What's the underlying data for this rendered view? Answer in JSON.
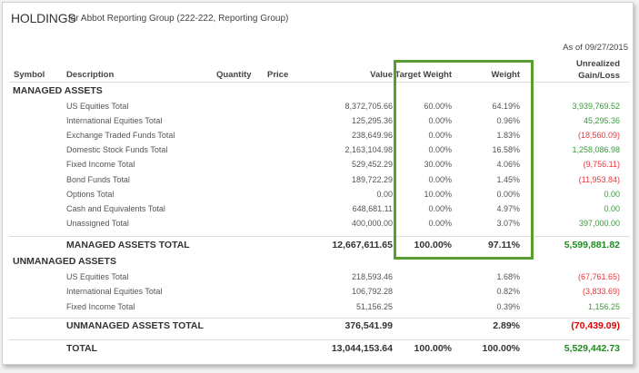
{
  "header": {
    "title": "HOLDINGS",
    "subtitle": "for Abbot Reporting Group (222-222, Reporting Group)",
    "as_of": "As of 09/27/2015"
  },
  "columns": {
    "symbol": "Symbol",
    "description": "Description",
    "quantity": "Quantity",
    "price": "Price",
    "value": "Value",
    "target_weight": "Target Weight",
    "weight": "Weight",
    "gain_line1": "Unrealized",
    "gain_line2": "Gain/Loss"
  },
  "highlight_color": "#5c9e2e",
  "managed": {
    "label": "MANAGED ASSETS",
    "rows": [
      {
        "description": "US Equities Total",
        "value": "8,372,705.66",
        "target": "60.00%",
        "weight": "64.19%",
        "gain": "3,939,769.52",
        "sign": "pos"
      },
      {
        "description": "International Equities Total",
        "value": "125,295.36",
        "target": "0.00%",
        "weight": "0.96%",
        "gain": "45,295.36",
        "sign": "pos"
      },
      {
        "description": "Exchange Traded Funds Total",
        "value": "238,649.96",
        "target": "0.00%",
        "weight": "1.83%",
        "gain": "(18,560.09)",
        "sign": "neg"
      },
      {
        "description": "Domestic Stock Funds Total",
        "value": "2,163,104.98",
        "target": "0.00%",
        "weight": "16.58%",
        "gain": "1,258,086.98",
        "sign": "pos"
      },
      {
        "description": "Fixed Income Total",
        "value": "529,452.29",
        "target": "30.00%",
        "weight": "4.06%",
        "gain": "(9,756.11)",
        "sign": "neg"
      },
      {
        "description": "Bond Funds Total",
        "value": "189,722.29",
        "target": "0.00%",
        "weight": "1.45%",
        "gain": "(11,953.84)",
        "sign": "neg"
      },
      {
        "description": "Options Total",
        "value": "0.00",
        "target": "10.00%",
        "weight": "0.00%",
        "gain": "0.00",
        "sign": "pos"
      },
      {
        "description": "Cash and Equivalents Total",
        "value": "648,681.11",
        "target": "0.00%",
        "weight": "4.97%",
        "gain": "0.00",
        "sign": "pos"
      },
      {
        "description": "Unassigned Total",
        "value": "400,000.00",
        "target": "0.00%",
        "weight": "3.07%",
        "gain": "397,000.00",
        "sign": "pos"
      }
    ],
    "total": {
      "description": "MANAGED ASSETS TOTAL",
      "value": "12,667,611.65",
      "target": "100.00%",
      "weight": "97.11%",
      "gain": "5,599,881.82",
      "sign": "pos"
    }
  },
  "unmanaged": {
    "label": "UNMANAGED ASSETS",
    "rows": [
      {
        "description": "US Equities Total",
        "value": "218,593.46",
        "target": "",
        "weight": "1.68%",
        "gain": "(67,761.65)",
        "sign": "neg"
      },
      {
        "description": "International Equities Total",
        "value": "106,792.28",
        "target": "",
        "weight": "0.82%",
        "gain": "(3,833.69)",
        "sign": "neg"
      },
      {
        "description": "Fixed Income Total",
        "value": "51,156.25",
        "target": "",
        "weight": "0.39%",
        "gain": "1,156.25",
        "sign": "pos"
      }
    ],
    "total": {
      "description": "UNMANAGED ASSETS TOTAL",
      "value": "376,541.99",
      "target": "",
      "weight": "2.89%",
      "gain": "(70,439.09)",
      "sign": "neg"
    }
  },
  "grand_total": {
    "description": "TOTAL",
    "value": "13,044,153.64",
    "target": "100.00%",
    "weight": "100.00%",
    "gain": "5,529,442.73",
    "sign": "pos"
  }
}
